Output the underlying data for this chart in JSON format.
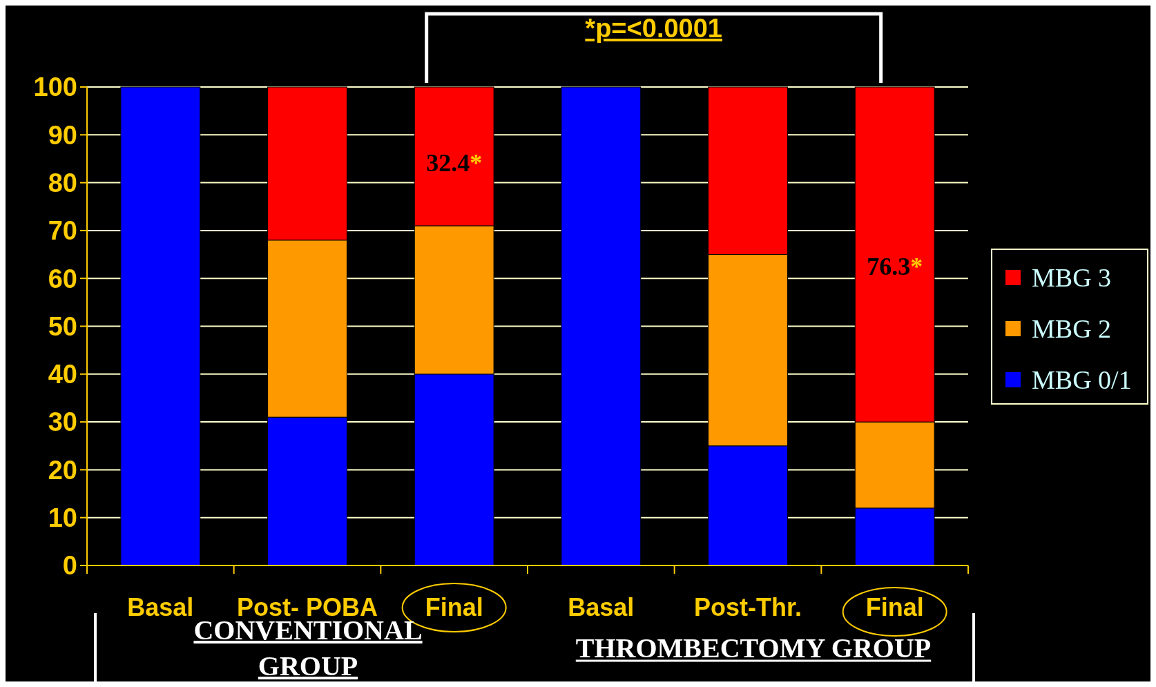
{
  "chart_data": {
    "type": "bar",
    "stacked": true,
    "title": "*p=<0.0001",
    "categories": [
      "Basal",
      "Post- POBA",
      "Final",
      "Basal",
      "Post-Thr.",
      "Final"
    ],
    "series": [
      {
        "name": "MBG 0/1",
        "color": "#0000ff",
        "values": [
          100,
          31,
          40,
          100,
          25,
          12
        ]
      },
      {
        "name": "MBG 2",
        "color": "#ff9900",
        "values": [
          0,
          37,
          31,
          0,
          40,
          18
        ]
      },
      {
        "name": "MBG 3",
        "color": "#ff0000",
        "values": [
          0,
          32,
          29,
          0,
          35,
          70
        ]
      }
    ],
    "ylim": [
      0,
      100
    ],
    "yticks": [
      0,
      10,
      20,
      30,
      40,
      50,
      60,
      70,
      80,
      90,
      100
    ],
    "grid": "y",
    "legend": "right",
    "annotations": [
      "32.4*",
      "76.3*",
      "CONVENTIONAL GROUP",
      "THROMBECTOMY GROUP"
    ]
  }
}
